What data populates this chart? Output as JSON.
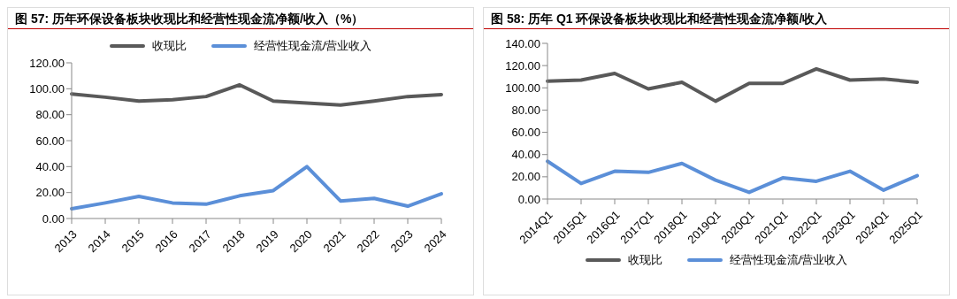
{
  "chart_data": [
    {
      "type": "line",
      "title": "图 57: 历年环保设备板块收现比和经营性现金流净额/收入（%）",
      "categories": [
        "2013",
        "2014",
        "2015",
        "2016",
        "2017",
        "2018",
        "2019",
        "2020",
        "2021",
        "2022",
        "2023",
        "2024"
      ],
      "series": [
        {
          "name": "收现比",
          "color": "#595959",
          "values": [
            96,
            93.5,
            90.5,
            91.5,
            94,
            103,
            90.5,
            89,
            87.5,
            90.5,
            94,
            95.5
          ]
        },
        {
          "name": "经营性现金流/营业收入",
          "color": "#5b8fd8",
          "values": [
            7.5,
            12,
            17,
            12,
            11,
            17.5,
            21.5,
            40,
            13.5,
            15.5,
            9.5,
            19
          ]
        }
      ],
      "ylim": [
        0,
        120
      ],
      "yticks": [
        {
          "value": 0,
          "label": "0.00"
        },
        {
          "value": 20,
          "label": "20.00"
        },
        {
          "value": 40,
          "label": "40.00"
        },
        {
          "value": 60,
          "label": "60.00"
        },
        {
          "value": 80,
          "label": "80.00"
        },
        {
          "value": 100,
          "label": "100.00"
        },
        {
          "value": 120,
          "label": "120.00"
        }
      ],
      "legend": "top",
      "grid": false,
      "marker": "none"
    },
    {
      "type": "line",
      "title": "图 58: 历年 Q1 环保设备板块收现比和经营性现金流净额/收入",
      "categories": [
        "2014Q1",
        "2015Q1",
        "2016Q1",
        "2017Q1",
        "2018Q1",
        "2019Q1",
        "2020Q1",
        "2021Q1",
        "2022Q1",
        "2023Q1",
        "2024Q1",
        "2025Q1"
      ],
      "series": [
        {
          "name": "收现比",
          "color": "#595959",
          "values": [
            106,
            107,
            113,
            99,
            105,
            88,
            104,
            104,
            117,
            107,
            108,
            105
          ]
        },
        {
          "name": "经营性现金流/营业收入",
          "color": "#5b8fd8",
          "values": [
            34,
            14,
            25,
            24,
            32,
            17,
            6,
            19,
            16,
            25,
            8,
            21
          ]
        }
      ],
      "ylim": [
        0,
        140
      ],
      "yticks": [
        {
          "value": 0,
          "label": "0.00"
        },
        {
          "value": 20,
          "label": "20.00"
        },
        {
          "value": 40,
          "label": "40.00"
        },
        {
          "value": 60,
          "label": "60.00"
        },
        {
          "value": 80,
          "label": "80.00"
        },
        {
          "value": 100,
          "label": "100.00"
        },
        {
          "value": 120,
          "label": "120.00"
        },
        {
          "value": 140,
          "label": "140.00"
        }
      ],
      "legend": "bottom",
      "grid": false,
      "marker": "none"
    }
  ]
}
